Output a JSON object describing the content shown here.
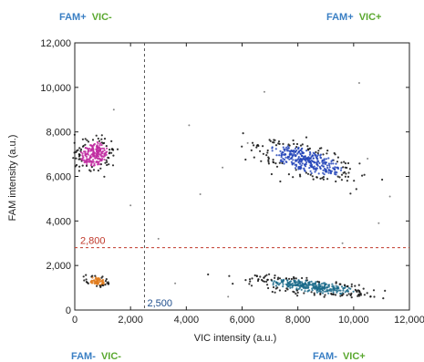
{
  "chart_data": {
    "type": "scatter",
    "xlabel": "VIC intensity (a.u.)",
    "ylabel": "FAM intensity (a.u.)",
    "xlim": [
      0,
      12000
    ],
    "ylim": [
      0,
      12000
    ],
    "xticks": [
      "0",
      "2,000",
      "4,000",
      "6,000",
      "8,000",
      "10,000",
      "12,000"
    ],
    "yticks": [
      "0",
      "2,000",
      "4,000",
      "6,000",
      "8,000",
      "10,000",
      "12,000"
    ],
    "xtick_values": [
      0,
      2000,
      4000,
      6000,
      8000,
      10000,
      12000
    ],
    "ytick_values": [
      0,
      2000,
      4000,
      6000,
      8000,
      10000,
      12000
    ],
    "grid": false,
    "thresholds": {
      "vertical": {
        "value": 2500,
        "label": "2,500",
        "color": "#555555"
      },
      "horizontal": {
        "value": 2800,
        "label": "2,800",
        "color": "#c0392b"
      }
    },
    "quadrant_labels": {
      "top_left": [
        {
          "text": "FAM+",
          "color": "#3a7fc4"
        },
        {
          "text": "VIC-",
          "color": "#5aa82f"
        }
      ],
      "top_right": [
        {
          "text": "FAM+",
          "color": "#3a7fc4"
        },
        {
          "text": "VIC+",
          "color": "#5aa82f"
        }
      ],
      "bottom_left": [
        {
          "text": "FAM-",
          "color": "#3a7fc4"
        },
        {
          "text": "VIC-",
          "color": "#5aa82f"
        }
      ],
      "bottom_right": [
        {
          "text": "FAM-",
          "color": "#3a7fc4"
        },
        {
          "text": "VIC+",
          "color": "#5aa82f"
        }
      ]
    },
    "clusters": [
      {
        "quadrant": "FAM+ VIC-",
        "center": [
          700,
          7000
        ],
        "spread": [
          300,
          350
        ],
        "angle_deg": -30,
        "color": "#c02aa0",
        "n": 260
      },
      {
        "quadrant": "FAM+ VIC+",
        "center": [
          8300,
          6700
        ],
        "spread": [
          900,
          300
        ],
        "angle_deg": -22,
        "color": "#2545b8",
        "n": 420
      },
      {
        "quadrant": "FAM- VIC-",
        "center": [
          800,
          1300
        ],
        "spread": [
          180,
          110
        ],
        "angle_deg": -20,
        "color": "#e07c1f",
        "n": 90
      },
      {
        "quadrant": "FAM- VIC+",
        "center": [
          8500,
          1050
        ],
        "spread": [
          1000,
          150
        ],
        "angle_deg": -8,
        "color": "#1a6a8a",
        "n": 380
      }
    ],
    "outliers": [
      [
        3000,
        3200
      ],
      [
        4500,
        5200
      ],
      [
        5300,
        6400
      ],
      [
        6200,
        7500
      ],
      [
        10200,
        10200
      ],
      [
        10500,
        6800
      ],
      [
        10900,
        3900
      ],
      [
        11300,
        5100
      ],
      [
        1400,
        9000
      ],
      [
        3600,
        1200
      ],
      [
        5500,
        600
      ],
      [
        2000,
        4700
      ],
      [
        6800,
        9800
      ],
      [
        9600,
        3000
      ],
      [
        4100,
        8300
      ]
    ]
  }
}
